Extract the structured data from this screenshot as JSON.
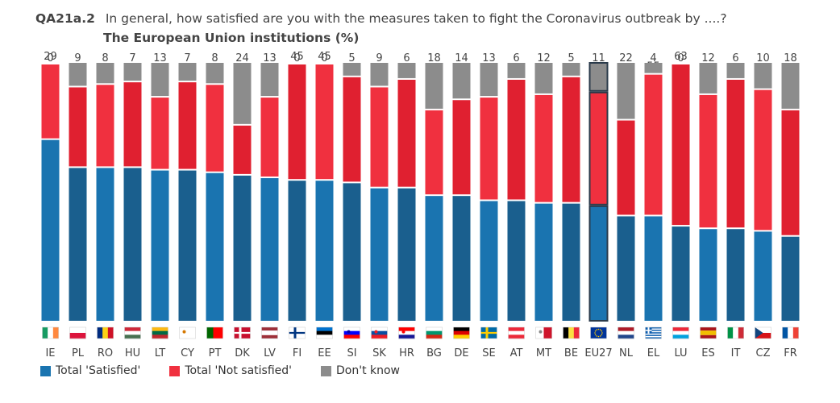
{
  "header": {
    "code": "QA21a.2",
    "question": "In general, how satisfied are you with the measures taken to fight the Coronavirus outbreak by ....?",
    "subtitle": "The European Union institutions  (%)"
  },
  "colors": {
    "satisfied": "#1a74b0",
    "satisfied_dark": "#1a5f8e",
    "not_satisfied": "#f0303f",
    "not_satisfied_dark": "#e02030",
    "dont_know": "#8c8c8c",
    "eu_outline": "#2a3a4a"
  },
  "legend": [
    {
      "label": "Total 'Satisfied'",
      "color": "#1a74b0"
    },
    {
      "label": "Total 'Not satisfied'",
      "color": "#f0303f"
    },
    {
      "label": "Don't know",
      "color": "#8c8c8c"
    }
  ],
  "chart_data": {
    "type": "bar",
    "stacked": true,
    "categories": [
      "IE",
      "PL",
      "RO",
      "HU",
      "LT",
      "CY",
      "PT",
      "DK",
      "LV",
      "FI",
      "EE",
      "SI",
      "SK",
      "HR",
      "BG",
      "DE",
      "SE",
      "AT",
      "MT",
      "BE",
      "EU27",
      "NL",
      "EL",
      "LU",
      "ES",
      "IT",
      "CZ",
      "FR"
    ],
    "series": [
      {
        "name": "Total 'Satisfied'",
        "values": [
          71,
          60,
          60,
          60,
          59,
          59,
          58,
          57,
          56,
          55,
          55,
          54,
          52,
          52,
          49,
          49,
          47,
          47,
          46,
          46,
          45,
          41,
          41,
          37,
          36,
          36,
          35,
          33
        ]
      },
      {
        "name": "Total 'Not satisfied'",
        "values": [
          29,
          31,
          32,
          33,
          28,
          34,
          34,
          19,
          31,
          45,
          45,
          41,
          39,
          42,
          33,
          37,
          40,
          47,
          42,
          49,
          44,
          37,
          55,
          63,
          52,
          58,
          55,
          49
        ]
      },
      {
        "name": "Don't know",
        "values": [
          0,
          9,
          8,
          7,
          13,
          7,
          8,
          24,
          13,
          0,
          0,
          5,
          9,
          6,
          18,
          14,
          13,
          6,
          12,
          5,
          11,
          22,
          4,
          0,
          12,
          6,
          10,
          18
        ]
      }
    ],
    "highlight": "EU27",
    "ylim": [
      0,
      100
    ]
  }
}
